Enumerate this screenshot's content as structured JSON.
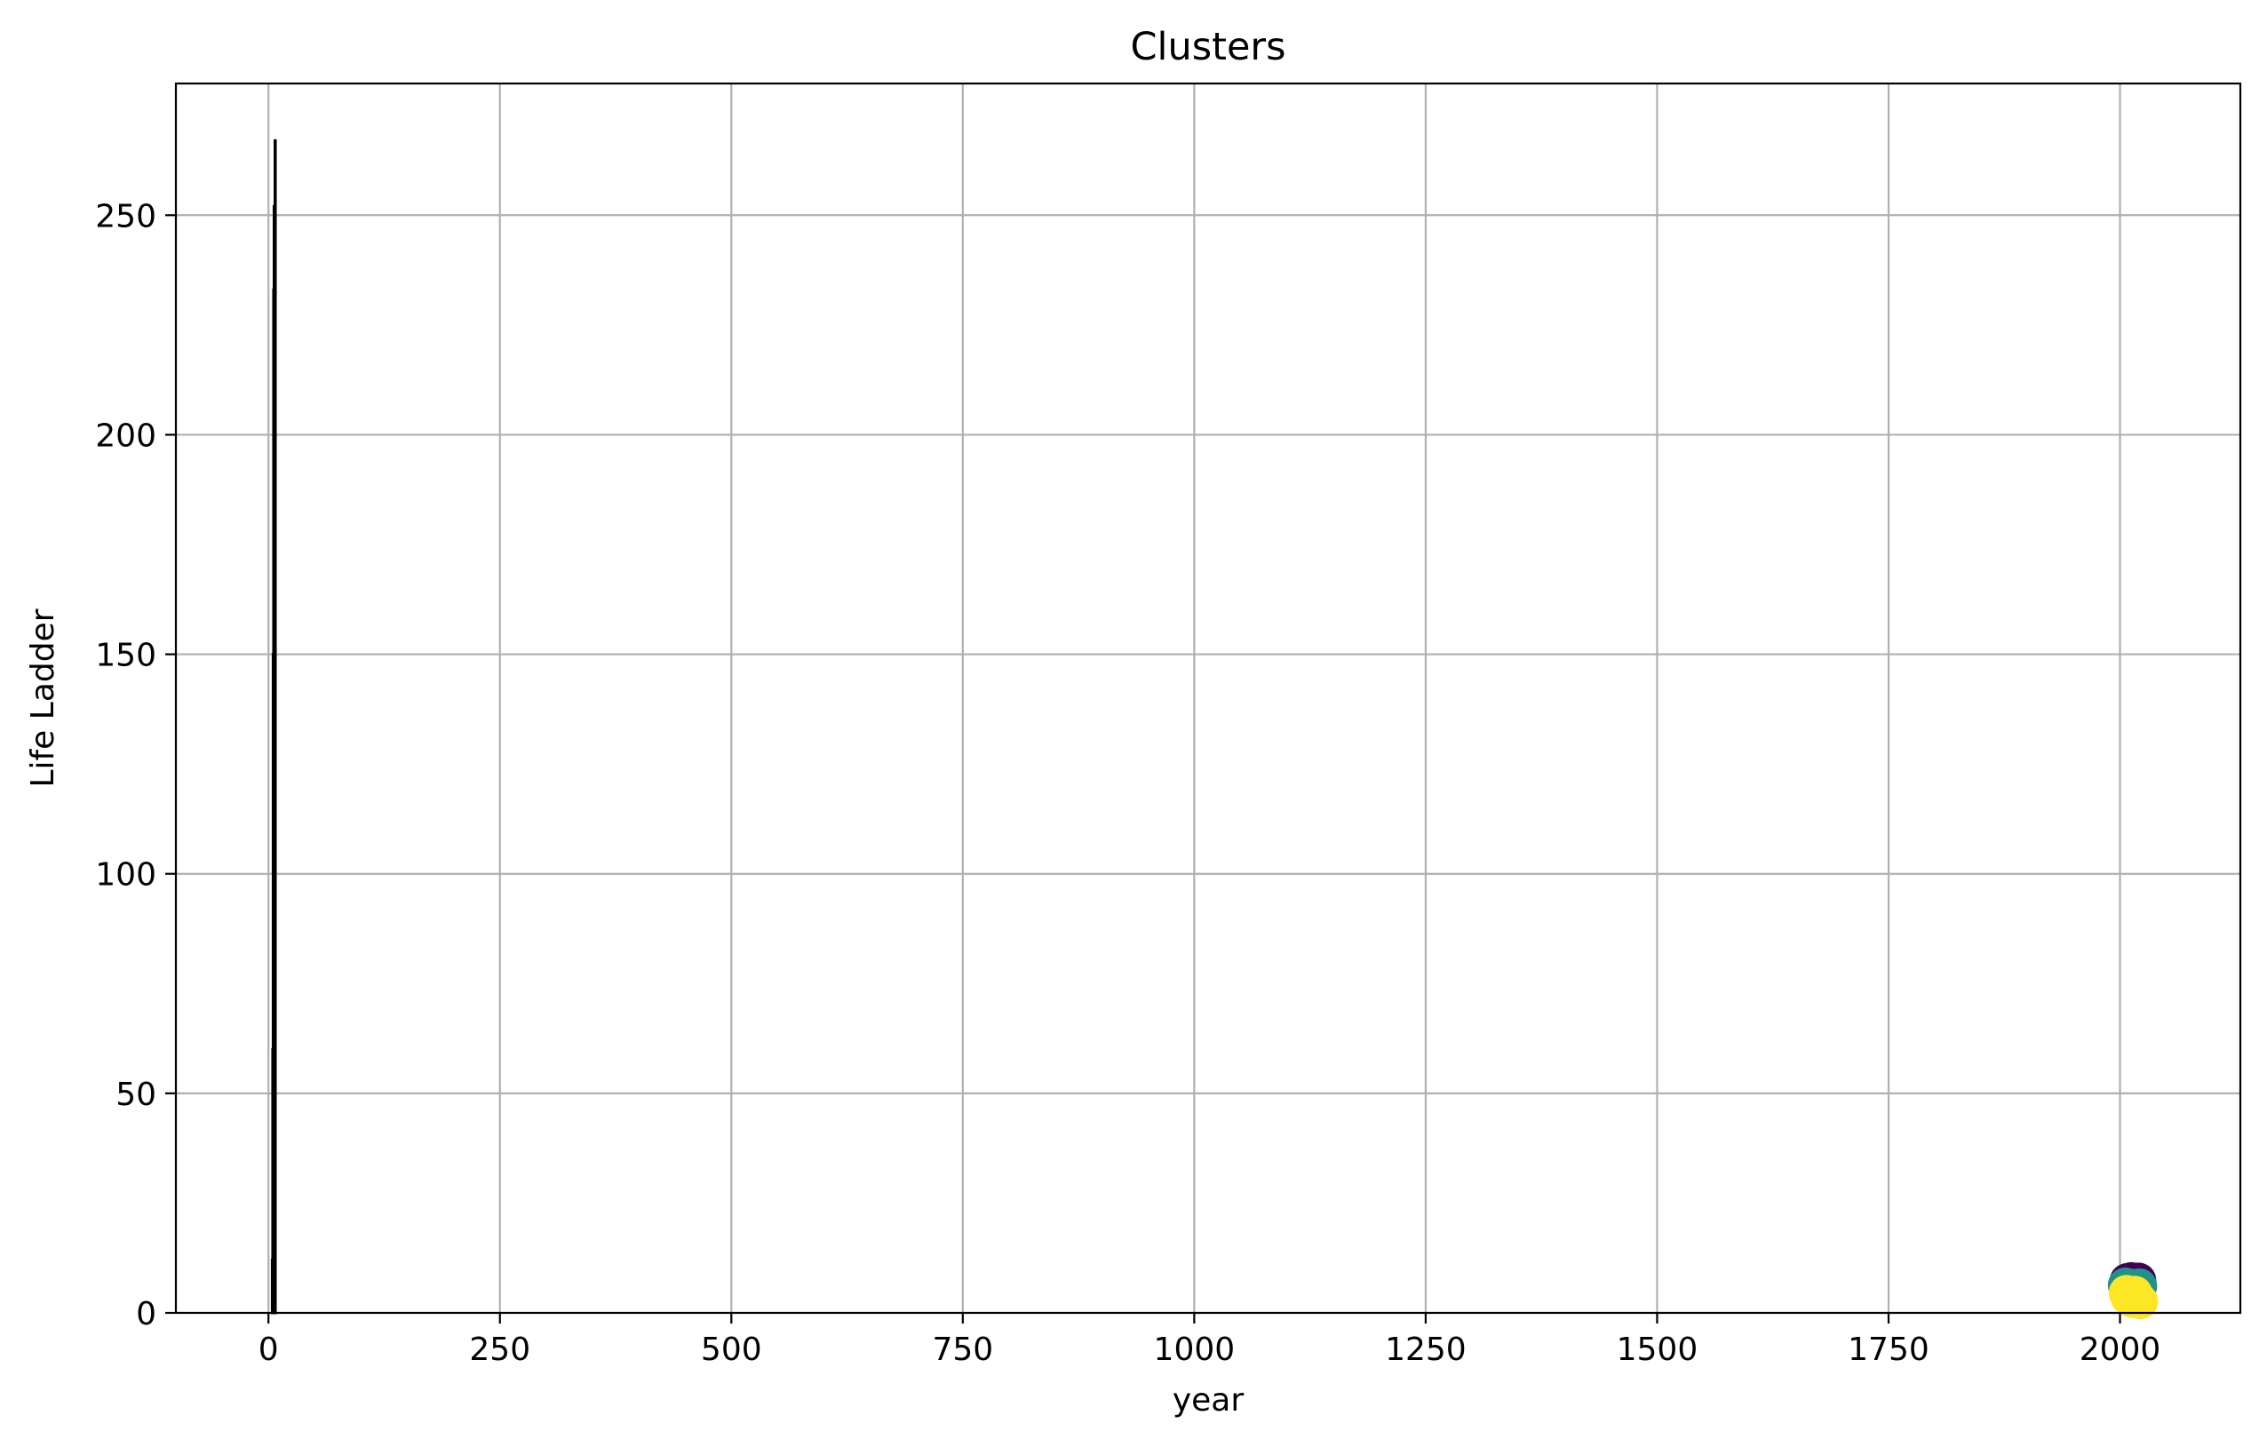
{
  "chart_data": {
    "type": "scatter",
    "title": "Clusters",
    "xlabel": "year",
    "ylabel": "Life Ladder",
    "xlim": [
      -100,
      2130
    ],
    "ylim": [
      0,
      280
    ],
    "xticks": [
      0,
      250,
      500,
      750,
      1000,
      1250,
      1500,
      1750,
      2000
    ],
    "yticks": [
      0,
      50,
      100,
      150,
      200,
      250
    ],
    "grid": true,
    "colors": {
      "bar_edge": "#000000",
      "bar_fill": "#0000ff",
      "cluster_0": "#440154",
      "cluster_1": "#21918c",
      "cluster_2": "#fde725"
    },
    "histogram": {
      "x_range": [
        4,
        7.5
      ],
      "bins": [
        {
          "x0": 4.0,
          "x1": 4.5,
          "count": 12
        },
        {
          "x0": 4.5,
          "x1": 5.0,
          "count": 60
        },
        {
          "x0": 5.0,
          "x1": 5.5,
          "count": 150
        },
        {
          "x0": 5.5,
          "x1": 6.0,
          "count": 233
        },
        {
          "x0": 6.0,
          "x1": 6.5,
          "count": 252
        },
        {
          "x0": 6.5,
          "x1": 7.0,
          "count": 180
        },
        {
          "x0": 7.0,
          "x1": 7.5,
          "count": 267
        }
      ]
    },
    "scatter": [
      {
        "x": 2008,
        "y": 7.3,
        "cluster": 0
      },
      {
        "x": 2012,
        "y": 7.5,
        "cluster": 0
      },
      {
        "x": 2016,
        "y": 7.1,
        "cluster": 0
      },
      {
        "x": 2020,
        "y": 7.4,
        "cluster": 0
      },
      {
        "x": 2009,
        "y": 6.7,
        "cluster": 0
      },
      {
        "x": 2018,
        "y": 6.9,
        "cluster": 0
      },
      {
        "x": 2006,
        "y": 6.3,
        "cluster": 1
      },
      {
        "x": 2010,
        "y": 5.8,
        "cluster": 1
      },
      {
        "x": 2014,
        "y": 6.0,
        "cluster": 1
      },
      {
        "x": 2017,
        "y": 5.6,
        "cluster": 1
      },
      {
        "x": 2021,
        "y": 6.1,
        "cluster": 1
      },
      {
        "x": 2012,
        "y": 5.2,
        "cluster": 1
      },
      {
        "x": 2007,
        "y": 4.6,
        "cluster": 2
      },
      {
        "x": 2011,
        "y": 4.1,
        "cluster": 2
      },
      {
        "x": 2015,
        "y": 3.7,
        "cluster": 2
      },
      {
        "x": 2019,
        "y": 3.2,
        "cluster": 2
      },
      {
        "x": 2022,
        "y": 2.6,
        "cluster": 2
      },
      {
        "x": 2013,
        "y": 2.9,
        "cluster": 2
      },
      {
        "x": 2009,
        "y": 3.5,
        "cluster": 2
      },
      {
        "x": 2016,
        "y": 4.4,
        "cluster": 2
      }
    ]
  }
}
